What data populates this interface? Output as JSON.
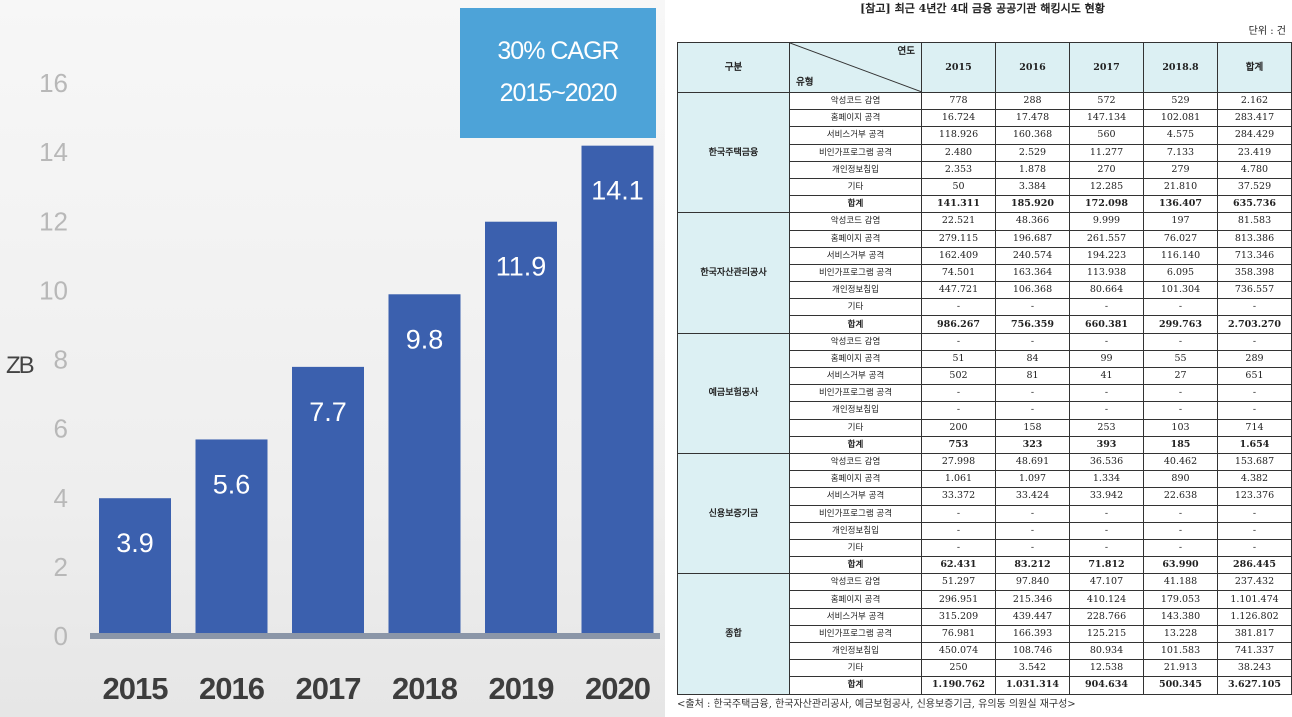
{
  "chart_data": {
    "type": "bar",
    "categories": [
      "2015",
      "2016",
      "2017",
      "2018",
      "2019",
      "2020"
    ],
    "values": [
      3.9,
      5.6,
      7.7,
      9.8,
      11.9,
      14.1
    ],
    "ylabel": "ZB",
    "ylim": [
      0,
      16
    ],
    "yticks": [
      0,
      2,
      4,
      6,
      8,
      10,
      12,
      14,
      16
    ],
    "annotation": [
      "30% CAGR",
      "2015~2020"
    ],
    "bar_color": "#3b60ae",
    "annotation_color": "#4da3d8"
  },
  "table": {
    "title": "[참고] 최근 4년간 4대 금융 공공기관 해킹시도 현황",
    "unit": "단위 : 건",
    "header_top": "연도",
    "header_bottom": "유형",
    "header_left": "구분",
    "columns": [
      "2015",
      "2016",
      "2017",
      "2018.8",
      "합계"
    ],
    "groups": [
      {
        "name": "한국주택금융",
        "rows": [
          {
            "type": "악성코드 감염",
            "values": [
              "778",
              "288",
              "572",
              "529",
              "2.162"
            ]
          },
          {
            "type": "홈페이지 공격",
            "values": [
              "16.724",
              "17.478",
              "147.134",
              "102.081",
              "283.417"
            ]
          },
          {
            "type": "서비스거부 공격",
            "values": [
              "118.926",
              "160.368",
              "560",
              "4.575",
              "284.429"
            ]
          },
          {
            "type": "비인가프로그램 공격",
            "values": [
              "2.480",
              "2.529",
              "11.277",
              "7.133",
              "23.419"
            ]
          },
          {
            "type": "개인정보침입",
            "values": [
              "2.353",
              "1.878",
              "270",
              "279",
              "4.780"
            ]
          },
          {
            "type": "기타",
            "values": [
              "50",
              "3.384",
              "12.285",
              "21.810",
              "37.529"
            ]
          },
          {
            "type": "합계",
            "values": [
              "141.311",
              "185.920",
              "172.098",
              "136.407",
              "635.736"
            ]
          }
        ]
      },
      {
        "name": "한국자산관리공사",
        "rows": [
          {
            "type": "악성코드 감염",
            "values": [
              "22.521",
              "48.366",
              "9.999",
              "197",
              "81.583"
            ]
          },
          {
            "type": "홈페이지 공격",
            "values": [
              "279.115",
              "196.687",
              "261.557",
              "76.027",
              "813.386"
            ]
          },
          {
            "type": "서비스거부 공격",
            "values": [
              "162.409",
              "240.574",
              "194.223",
              "116.140",
              "713.346"
            ]
          },
          {
            "type": "비인가프로그램 공격",
            "values": [
              "74.501",
              "163.364",
              "113.938",
              "6.095",
              "358.398"
            ]
          },
          {
            "type": "개인정보침입",
            "values": [
              "447.721",
              "106.368",
              "80.664",
              "101.304",
              "736.557"
            ]
          },
          {
            "type": "기타",
            "values": [
              "-",
              "-",
              "-",
              "-",
              "-"
            ]
          },
          {
            "type": "합계",
            "values": [
              "986.267",
              "756.359",
              "660.381",
              "299.763",
              "2.703.270"
            ]
          }
        ]
      },
      {
        "name": "예금보험공사",
        "rows": [
          {
            "type": "악성코드 감염",
            "values": [
              "-",
              "-",
              "-",
              "-",
              "-"
            ]
          },
          {
            "type": "홈페이지 공격",
            "values": [
              "51",
              "84",
              "99",
              "55",
              "289"
            ]
          },
          {
            "type": "서비스거부 공격",
            "values": [
              "502",
              "81",
              "41",
              "27",
              "651"
            ]
          },
          {
            "type": "비인가프로그램 공격",
            "values": [
              "-",
              "-",
              "-",
              "-",
              "-"
            ]
          },
          {
            "type": "개인정보침입",
            "values": [
              "-",
              "-",
              "-",
              "-",
              "-"
            ]
          },
          {
            "type": "기타",
            "values": [
              "200",
              "158",
              "253",
              "103",
              "714"
            ]
          },
          {
            "type": "합계",
            "values": [
              "753",
              "323",
              "393",
              "185",
              "1.654"
            ]
          }
        ]
      },
      {
        "name": "신용보증기금",
        "rows": [
          {
            "type": "악성코드 감염",
            "values": [
              "27.998",
              "48.691",
              "36.536",
              "40.462",
              "153.687"
            ]
          },
          {
            "type": "홈페이지 공격",
            "values": [
              "1.061",
              "1.097",
              "1.334",
              "890",
              "4.382"
            ]
          },
          {
            "type": "서비스거부 공격",
            "values": [
              "33.372",
              "33.424",
              "33.942",
              "22.638",
              "123.376"
            ]
          },
          {
            "type": "비인가프로그램 공격",
            "values": [
              "-",
              "-",
              "-",
              "-",
              "-"
            ]
          },
          {
            "type": "개인정보침입",
            "values": [
              "-",
              "-",
              "-",
              "-",
              "-"
            ]
          },
          {
            "type": "기타",
            "values": [
              "-",
              "-",
              "-",
              "-",
              "-"
            ]
          },
          {
            "type": "합계",
            "values": [
              "62.431",
              "83.212",
              "71.812",
              "63.990",
              "286.445"
            ]
          }
        ]
      },
      {
        "name": "종합",
        "rows": [
          {
            "type": "악성코드 감염",
            "values": [
              "51.297",
              "97.840",
              "47.107",
              "41.188",
              "237.432"
            ]
          },
          {
            "type": "홈페이지 공격",
            "values": [
              "296.951",
              "215.346",
              "410.124",
              "179.053",
              "1.101.474"
            ]
          },
          {
            "type": "서비스거부 공격",
            "values": [
              "315.209",
              "439.447",
              "228.766",
              "143.380",
              "1.126.802"
            ]
          },
          {
            "type": "비인가프로그램 공격",
            "values": [
              "76.981",
              "166.393",
              "125.215",
              "13.228",
              "381.817"
            ]
          },
          {
            "type": "개인정보침입",
            "values": [
              "450.074",
              "108.746",
              "80.934",
              "101.583",
              "741.337"
            ]
          },
          {
            "type": "기타",
            "values": [
              "250",
              "3.542",
              "12.538",
              "21.913",
              "38.243"
            ]
          },
          {
            "type": "합계",
            "values": [
              "1.190.762",
              "1.031.314",
              "904.634",
              "500.345",
              "3.627.105"
            ]
          }
        ]
      }
    ],
    "source": "<출처 : 한국주택금융, 한국자산관리공사, 예금보험공사, 신용보증기금, 유의동 의원실 재구성>"
  }
}
